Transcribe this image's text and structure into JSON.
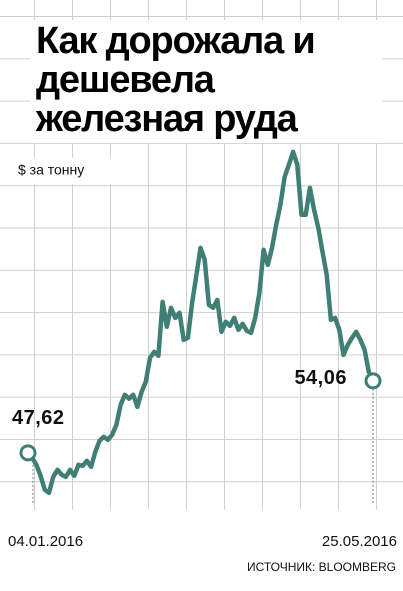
{
  "chart_data": {
    "type": "line",
    "title": "Как дорожала и дешевела железная руда",
    "y_label": "$ за тонну",
    "source": "ИСТОЧНИК: BLOOMBERG",
    "categories": [
      "04.01.2016",
      null,
      null,
      null,
      null,
      null,
      null,
      null,
      null,
      null,
      null,
      null,
      null,
      null,
      null,
      null,
      null,
      null,
      null,
      null,
      null,
      null,
      null,
      null,
      null,
      null,
      null,
      null,
      null,
      null,
      null,
      null,
      null,
      null,
      null,
      null,
      null,
      null,
      null,
      null,
      null,
      null,
      null,
      null,
      null,
      null,
      null,
      null,
      null,
      null,
      null,
      null,
      null,
      null,
      null,
      null,
      null,
      null,
      null,
      null,
      null,
      null,
      null,
      null,
      null,
      null,
      null,
      null,
      null,
      null,
      null,
      null,
      null,
      null,
      null,
      null,
      null,
      null,
      null,
      null,
      null,
      null,
      "25.05.2016"
    ],
    "values": [
      47.62,
      47.17,
      46.55,
      45.56,
      44.31,
      44.04,
      45.47,
      46.1,
      45.65,
      45.47,
      46.1,
      45.56,
      46.55,
      46.46,
      46.91,
      46.37,
      47.71,
      48.69,
      49.05,
      48.78,
      49.23,
      50.12,
      51.91,
      52.81,
      52.45,
      52.81,
      51.73,
      53.07,
      53.97,
      56.12,
      56.65,
      56.3,
      61.12,
      58.89,
      60.59,
      59.69,
      60.14,
      57.72,
      57.9,
      61.03,
      63.45,
      65.95,
      64.88,
      60.85,
      60.59,
      61.3,
      58.44,
      59.34,
      58.98,
      59.69,
      58.62,
      59.16,
      58.53,
      58.35,
      59.69,
      61.93,
      65.77,
      64.43,
      65.95,
      68.01,
      69.8,
      72.3,
      73.38,
      74.54,
      73.38,
      68.91,
      68.91,
      71.32,
      69.35,
      67.74,
      65.6,
      63.54,
      59.52,
      59.69,
      58.62,
      56.38,
      57.28,
      57.9,
      58.44,
      57.72,
      56.83,
      54.86,
      54.06
    ],
    "value_labels": [
      "47,62",
      null,
      null,
      null,
      null,
      null,
      null,
      null,
      null,
      null,
      null,
      null,
      null,
      null,
      null,
      null,
      null,
      null,
      null,
      null,
      null,
      null,
      null,
      null,
      null,
      null,
      null,
      null,
      null,
      null,
      null,
      null,
      null,
      null,
      null,
      null,
      null,
      null,
      null,
      null,
      null,
      null,
      null,
      null,
      null,
      null,
      null,
      null,
      null,
      null,
      null,
      null,
      null,
      null,
      null,
      null,
      null,
      null,
      null,
      null,
      null,
      null,
      null,
      null,
      null,
      null,
      null,
      null,
      null,
      null,
      null,
      null,
      null,
      null,
      null,
      null,
      null,
      null,
      null,
      null,
      null,
      null,
      "54,06"
    ],
    "color": "#3f7f76",
    "ylim": [
      43.4,
      86.6
    ]
  }
}
